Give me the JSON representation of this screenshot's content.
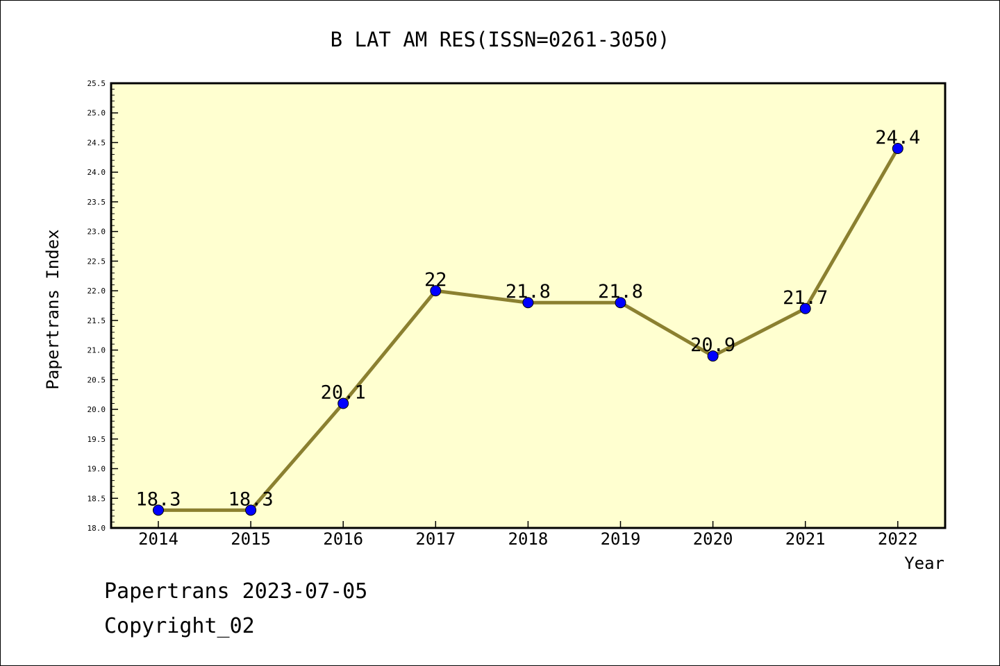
{
  "chart_data": {
    "type": "line",
    "title": "B LAT AM RES(ISSN=0261-3050)",
    "xlabel": "Year",
    "ylabel": "Papertrans Index",
    "categories": [
      "2014",
      "2015",
      "2016",
      "2017",
      "2018",
      "2019",
      "2020",
      "2021",
      "2022"
    ],
    "series": [
      {
        "values": [
          18.3,
          18.3,
          20.1,
          22,
          21.8,
          21.8,
          20.9,
          21.7,
          24.4
        ],
        "labels": [
          "18.3",
          "18.3",
          "20.1",
          "22",
          "21.8",
          "21.8",
          "20.9",
          "21.7",
          "24.4"
        ]
      }
    ],
    "ylim": [
      18.0,
      25.5
    ],
    "yticks": [
      "18.0",
      "18.5",
      "19.0",
      "19.5",
      "20.0",
      "20.5",
      "21.0",
      "21.5",
      "22.0",
      "22.5",
      "23.0",
      "23.5",
      "24.0",
      "24.5",
      "25.0",
      "25.5"
    ],
    "grid": false,
    "colors": {
      "plot_background": "#ffffd0",
      "line": "#8b8030",
      "marker": "#0000ff"
    }
  },
  "footer": {
    "line1": "Papertrans 2023-07-05",
    "line2": "Copyright_02"
  }
}
